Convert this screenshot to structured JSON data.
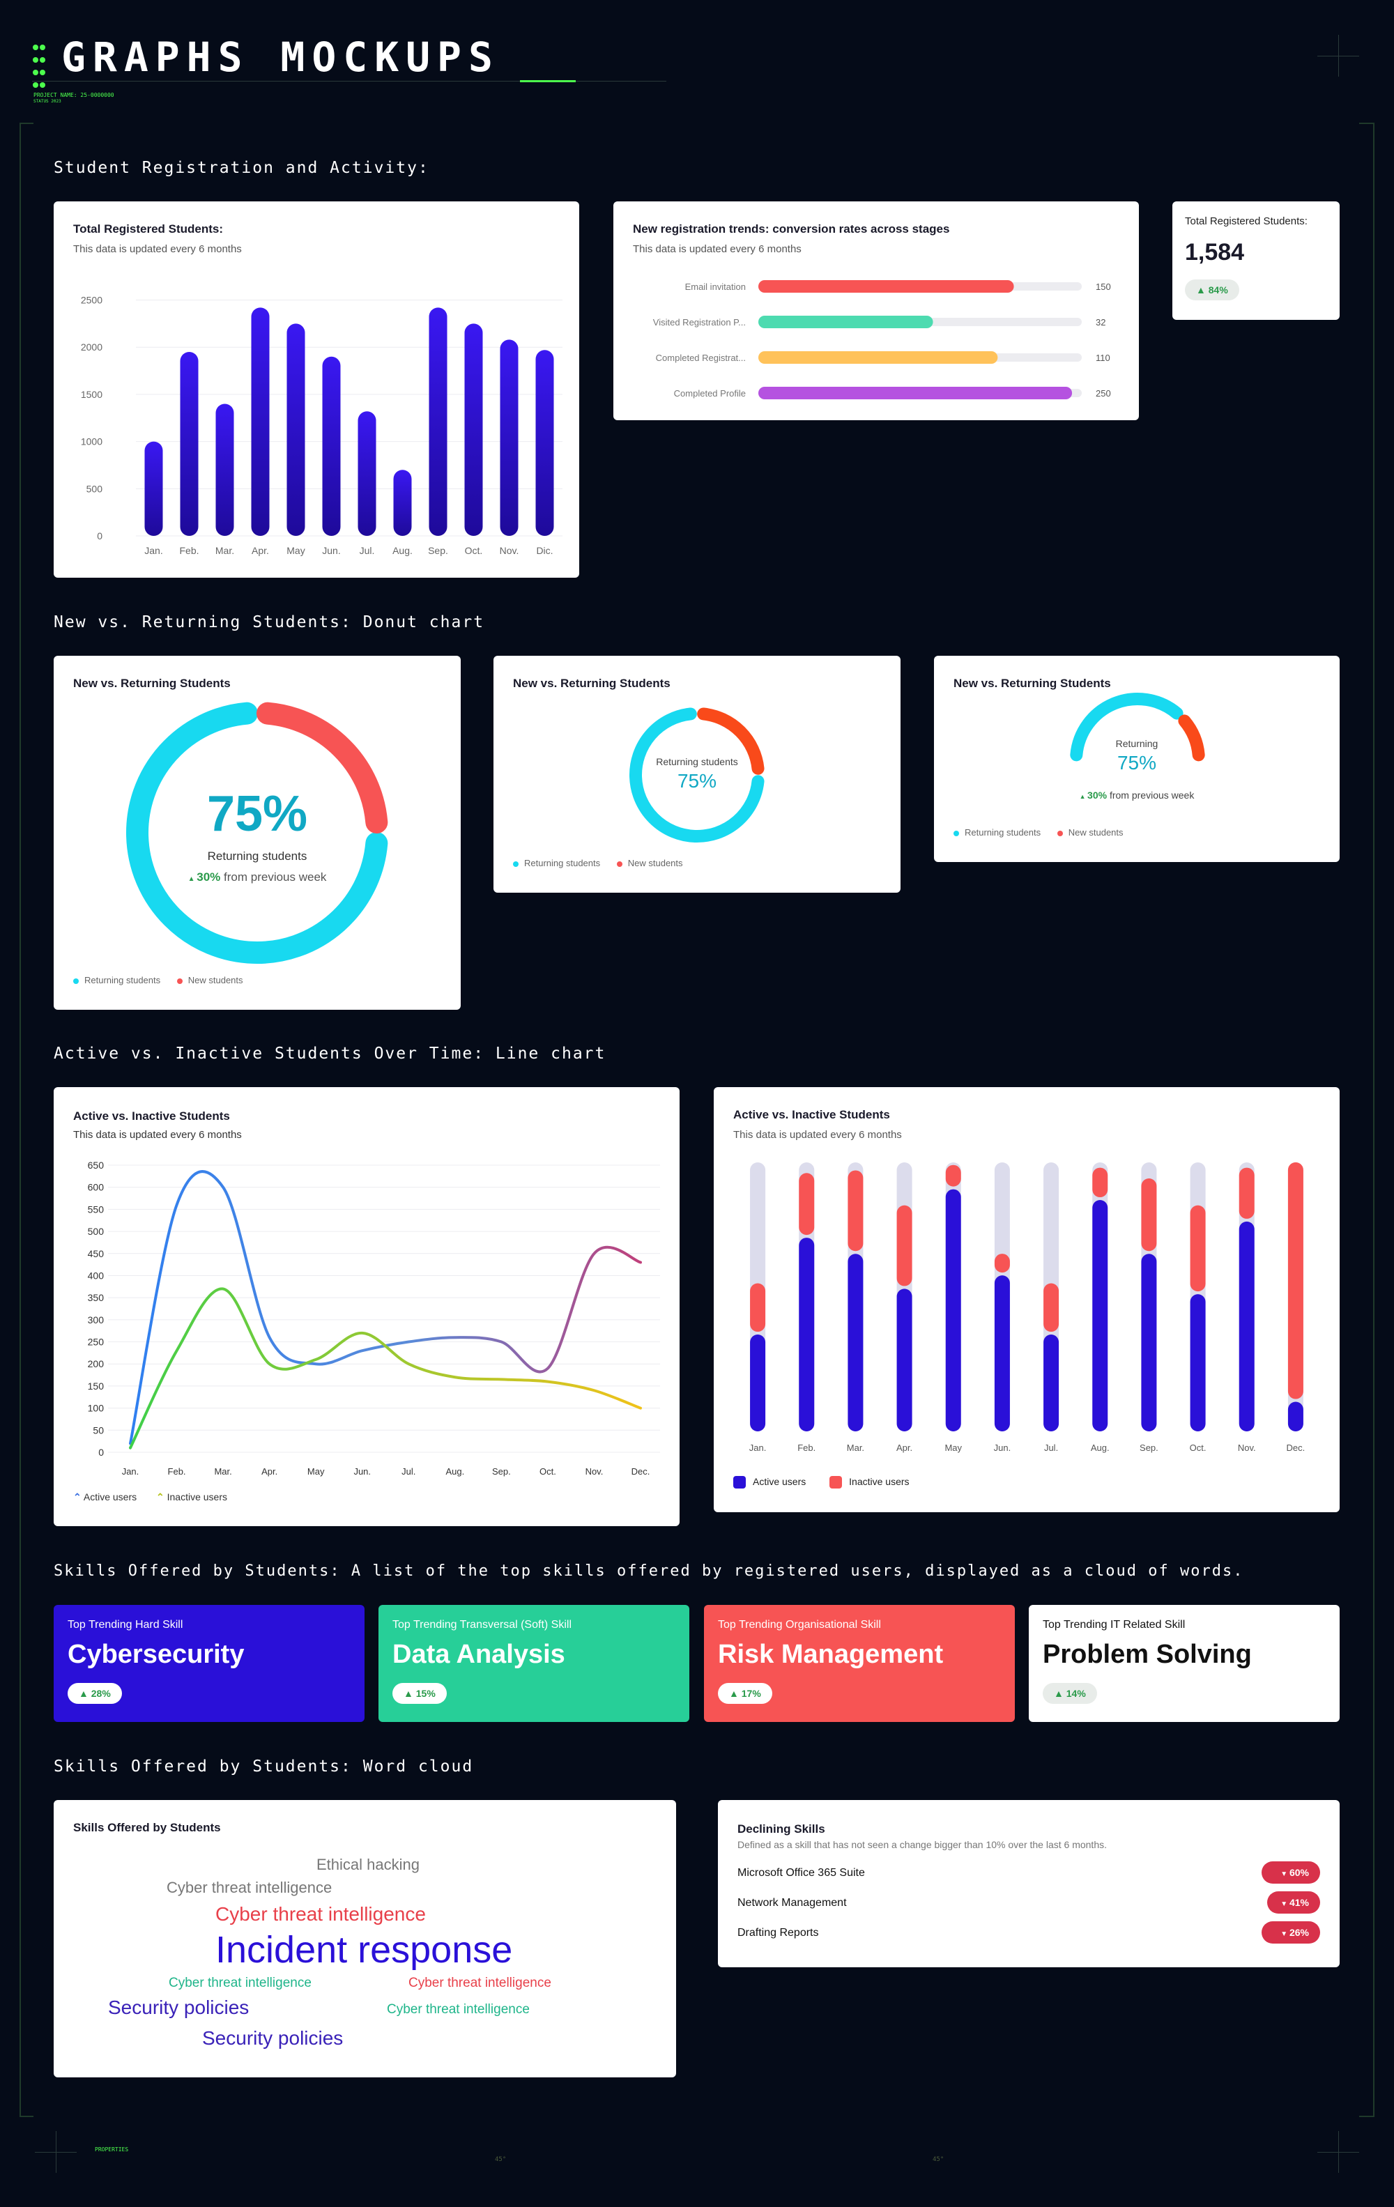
{
  "header": {
    "title": "GRAPHS MOCKUPS",
    "project_line": "PROJECT NAME: 25-0000000",
    "sub_line": "STATUS 2023"
  },
  "sections": {
    "registration": "Student Registration and Activity:",
    "donut": "New vs. Returning Students: Donut chart",
    "line": "Active vs. Inactive Students Over Time: Line chart",
    "skills": "Skills Offered by Students: A list of the top skills offered by registered users, displayed as a cloud of words.",
    "wordcloud": "Skills Offered by Students: Word cloud"
  },
  "colors": {
    "background": "#050b18",
    "accent_green": "#4dff4d",
    "indigo": "#2a10d8",
    "teal": "#18d9f0",
    "red": "#f75454",
    "mint": "#27cf98",
    "orange": "#ffc25a",
    "purple": "#b552e0"
  },
  "chart_data": [
    {
      "id": "total-registered",
      "type": "bar",
      "title": "Total Registered Students:",
      "subtitle": "This data is updated every 6 months",
      "categories": [
        "Jan.",
        "Feb.",
        "Mar.",
        "Apr.",
        "May",
        "Jun.",
        "Jul.",
        "Aug.",
        "Sep.",
        "Oct.",
        "Nov.",
        "Dic."
      ],
      "values": [
        1000,
        1950,
        1400,
        2420,
        2250,
        1900,
        1320,
        700,
        2420,
        2250,
        2080,
        1970
      ],
      "yticks": [
        0,
        500,
        1000,
        1500,
        2000,
        2500
      ],
      "ylim": [
        0,
        2600
      ],
      "grid": true
    },
    {
      "id": "conversion",
      "type": "bar",
      "orientation": "horizontal",
      "title": "New registration trends: conversion rates across stages",
      "subtitle": "This data is updated every 6 months",
      "categories": [
        "Email invitation",
        "Visited Registration P...",
        "Completed Registrat...",
        "Completed Profile"
      ],
      "values": [
        150,
        32,
        110,
        250
      ],
      "fill_fraction": [
        0.79,
        0.54,
        0.74,
        0.97
      ],
      "colors": [
        "#f75454",
        "#4ddbb0",
        "#ffc25a",
        "#b552e0"
      ]
    },
    {
      "id": "donut-large",
      "type": "pie",
      "title": "New vs. Returning Students",
      "center_value": "75%",
      "center_label": "Returning students",
      "change_value": "30%",
      "change_text": "from previous week",
      "series": [
        {
          "name": "Returning students",
          "value": 75,
          "color": "#18d9f0"
        },
        {
          "name": "New students",
          "value": 25,
          "color": "#f75454"
        }
      ]
    },
    {
      "id": "donut-medium",
      "type": "pie",
      "title": "New vs. Returning Students",
      "center_value": "75%",
      "center_label": "Returning students",
      "series": [
        {
          "name": "Returning students",
          "value": 75,
          "color": "#18d9f0"
        },
        {
          "name": "New students",
          "value": 25,
          "color": "#f94a1a"
        }
      ]
    },
    {
      "id": "donut-gauge",
      "type": "pie",
      "title": "New vs. Returning Students",
      "center_value": "75%",
      "center_label": "Returning",
      "change_value": "30%",
      "change_text": "from previous week",
      "series": [
        {
          "name": "Returning students",
          "value": 75,
          "color": "#18d9f0"
        },
        {
          "name": "New students",
          "value": 25,
          "color": "#f94a1a"
        }
      ]
    },
    {
      "id": "active-line",
      "type": "line",
      "title": "Active vs. Inactive Students",
      "subtitle": "This data is updated every 6 months",
      "categories": [
        "Jan.",
        "Feb.",
        "Mar.",
        "Apr.",
        "May",
        "Jun.",
        "Jul.",
        "Aug.",
        "Sep.",
        "Oct.",
        "Nov.",
        "Dec."
      ],
      "yticks": [
        0,
        50,
        100,
        150,
        200,
        250,
        300,
        350,
        400,
        450,
        500,
        550,
        600,
        650
      ],
      "ylim": [
        0,
        650
      ],
      "grid": true,
      "series": [
        {
          "name": "Active users",
          "values": [
            20,
            560,
            600,
            260,
            200,
            230,
            250,
            260,
            250,
            190,
            450,
            430
          ]
        },
        {
          "name": "Inactive users",
          "values": [
            10,
            230,
            370,
            200,
            210,
            270,
            200,
            170,
            165,
            160,
            140,
            100
          ]
        }
      ]
    },
    {
      "id": "active-bars",
      "type": "bar",
      "title": "Active vs. Inactive Students",
      "subtitle": "This data is updated every 6 months",
      "categories": [
        "Jan.",
        "Feb.",
        "Mar.",
        "Apr.",
        "May",
        "Jun.",
        "Jul.",
        "Aug.",
        "Sep.",
        "Oct.",
        "Nov.",
        "Dec."
      ],
      "series": [
        {
          "name": "Active users",
          "values": [
            0.36,
            0.72,
            0.66,
            0.53,
            0.9,
            0.58,
            0.36,
            0.86,
            0.66,
            0.51,
            0.78,
            0.11
          ]
        },
        {
          "name": "Inactive users",
          "values": [
            0.18,
            0.23,
            0.3,
            0.3,
            0.08,
            0.07,
            0.18,
            0.11,
            0.27,
            0.32,
            0.19,
            0.88
          ]
        }
      ]
    }
  ],
  "total_card": {
    "label": "Total Registered Students:",
    "value": "1,584",
    "change": "84%"
  },
  "legend": {
    "returning": "Returning students",
    "new": "New students",
    "active": "Active users",
    "inactive": "Inactive users"
  },
  "skills": [
    {
      "kicker": "Top Trending Hard Skill",
      "value": "Cybersecurity",
      "change": "28%",
      "bg": "#2a10d8",
      "fg": "#ffffff"
    },
    {
      "kicker": "Top Trending Transversal (Soft) Skill",
      "value": "Data Analysis",
      "change": "15%",
      "bg": "#27cf98",
      "fg": "#ffffff"
    },
    {
      "kicker": "Top Trending Organisational Skill",
      "value": "Risk Management",
      "change": "17%",
      "bg": "#f75454",
      "fg": "#ffffff"
    },
    {
      "kicker": "Top Trending IT Related Skill",
      "value": "Problem Solving",
      "change": "14%",
      "bg": "#ffffff",
      "fg": "#111111"
    }
  ],
  "wordcloud": {
    "title": "Skills Offered by Students",
    "words": [
      "Ethical hacking",
      "Cyber threat intelligence",
      "Cyber threat intelligence",
      "Incident response",
      "Cyber threat intelligence",
      "Cyber threat intelligence",
      "Security policies",
      "Cyber threat intelligence",
      "Security policies"
    ]
  },
  "declining": {
    "title": "Declining Skills",
    "subtitle": "Defined as a skill that has not seen a change bigger than 10% over the last 6 months.",
    "items": [
      {
        "name": "Microsoft Office 365 Suite",
        "change": "60%"
      },
      {
        "name": "Network Management",
        "change": "41%"
      },
      {
        "name": "Drafting Reports",
        "change": "26%"
      }
    ]
  },
  "footer": {
    "left_meta": "PROPERTIES",
    "angle_a": "45°",
    "angle_b": "45°"
  }
}
